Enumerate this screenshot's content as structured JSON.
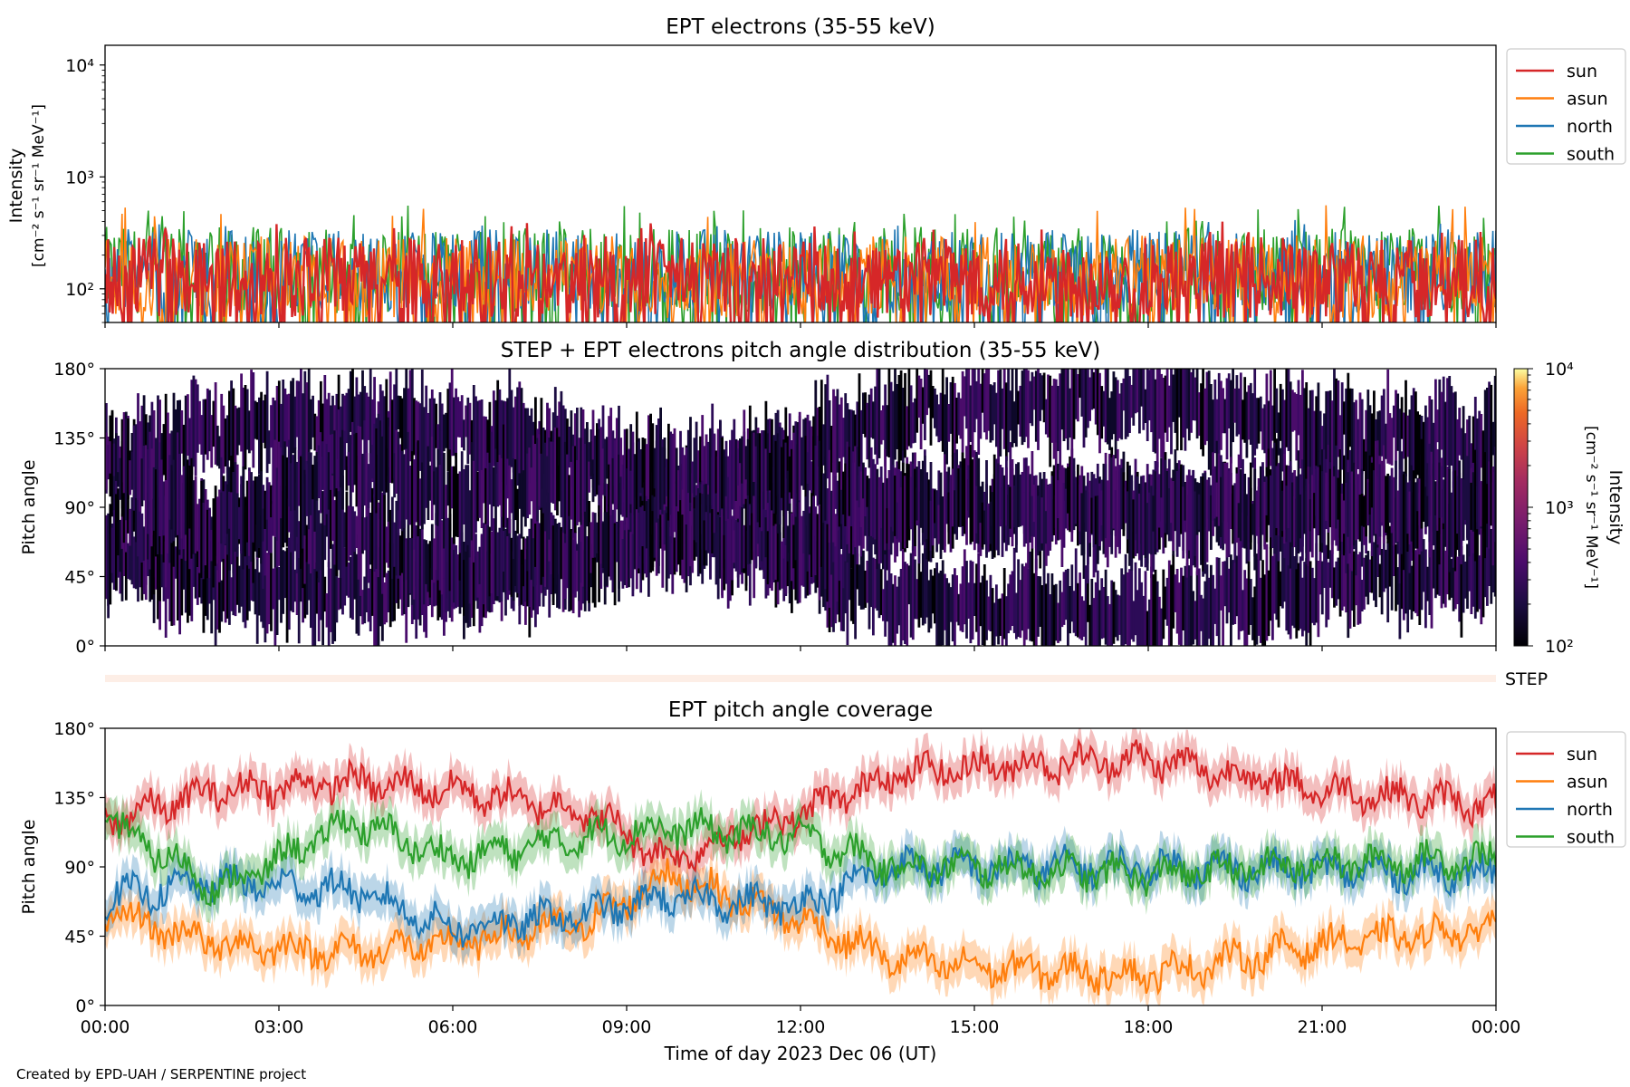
{
  "footer": "Created by EPD-UAH / SERPENTINE project",
  "xlabel": "Time of day 2023 Dec 06 (UT)",
  "xticks": [
    "00:00",
    "03:00",
    "06:00",
    "09:00",
    "12:00",
    "15:00",
    "18:00",
    "21:00",
    "00:00"
  ],
  "colors": {
    "sun": "#d62728",
    "asun": "#ff7f0e",
    "north": "#1f77b4",
    "south": "#2ca02c"
  },
  "chart_data": [
    {
      "type": "line",
      "title": "EPT electrons (35-55 keV)",
      "ylabel": "Intensity",
      "yunit": "[cm⁻² s⁻¹ sr⁻¹ MeV⁻¹]",
      "yscale": "log",
      "ylim": [
        50,
        15000
      ],
      "xlim_hours": [
        0,
        24
      ],
      "yticks": [
        {
          "value": 100,
          "label": "10²"
        },
        {
          "value": 1000,
          "label": "10³"
        },
        {
          "value": 10000,
          "label": "10⁴"
        }
      ],
      "legend": {
        "placement": "outside-right-top",
        "entries": [
          "sun",
          "asun",
          "north",
          "south"
        ]
      },
      "series": [
        {
          "name": "sun",
          "color": "#d62728",
          "typical_range": [
            55,
            290
          ],
          "peak": 400
        },
        {
          "name": "asun",
          "color": "#ff7f0e",
          "typical_range": [
            55,
            300
          ],
          "peak": 560
        },
        {
          "name": "north",
          "color": "#1f77b4",
          "typical_range": [
            60,
            340
          ],
          "peak": 430
        },
        {
          "name": "south",
          "color": "#2ca02c",
          "typical_range": [
            60,
            360
          ],
          "peak": 560
        }
      ]
    },
    {
      "type": "heatmap",
      "title": "STEP + EPT electrons pitch angle distribution (35-55 keV)",
      "ylabel": "Pitch angle",
      "ylim": [
        0,
        180
      ],
      "yticks": [
        "0°",
        "45°",
        "90°",
        "135°",
        "180°"
      ],
      "colorbar": {
        "label": "Intensity",
        "unit": "[cm⁻² s⁻¹ sr⁻¹ MeV⁻¹]",
        "scale": "log",
        "range": [
          100,
          10000
        ],
        "ticks": [
          {
            "value": 100,
            "label": "10²"
          },
          {
            "value": 1000,
            "label": "10³"
          },
          {
            "value": 10000,
            "label": "10⁴"
          }
        ],
        "colormap": "inferno"
      },
      "step_label": "STEP"
    },
    {
      "type": "line",
      "title": "EPT pitch angle coverage",
      "ylabel": "Pitch angle",
      "ylim": [
        0,
        180
      ],
      "yticks": [
        "0°",
        "45°",
        "90°",
        "135°",
        "180°"
      ],
      "legend": {
        "placement": "outside-right-top",
        "entries": [
          "sun",
          "asun",
          "north",
          "south"
        ]
      },
      "series": [
        {
          "name": "sun",
          "color": "#d62728",
          "hours": [
            0,
            2,
            4.25,
            6,
            8.4,
            9.7,
            12,
            13.6,
            15,
            18,
            21,
            24
          ],
          "values": [
            120,
            140,
            145,
            140,
            125,
            95,
            125,
            150,
            155,
            160,
            140,
            130
          ]
        },
        {
          "name": "asun",
          "color": "#ff7f0e",
          "hours": [
            0,
            2,
            4.25,
            6,
            8.4,
            9.7,
            12,
            13.6,
            15,
            18,
            21,
            24
          ],
          "values": [
            60,
            40,
            35,
            40,
            55,
            85,
            55,
            30,
            25,
            20,
            40,
            50
          ]
        },
        {
          "name": "north",
          "color": "#1f77b4",
          "hours": [
            0,
            2,
            4.25,
            6,
            8.4,
            9.7,
            12,
            13.6,
            15,
            18,
            21,
            24
          ],
          "values": [
            70,
            80,
            75,
            50,
            60,
            70,
            65,
            90,
            90,
            90,
            88,
            85
          ]
        },
        {
          "name": "south",
          "color": "#2ca02c",
          "hours": [
            0,
            2,
            4.25,
            6,
            8.4,
            9.7,
            12,
            13.6,
            15,
            18,
            21,
            24
          ],
          "values": [
            120,
            75,
            120,
            95,
            110,
            115,
            110,
            90,
            90,
            85,
            92,
            95
          ]
        }
      ]
    }
  ]
}
